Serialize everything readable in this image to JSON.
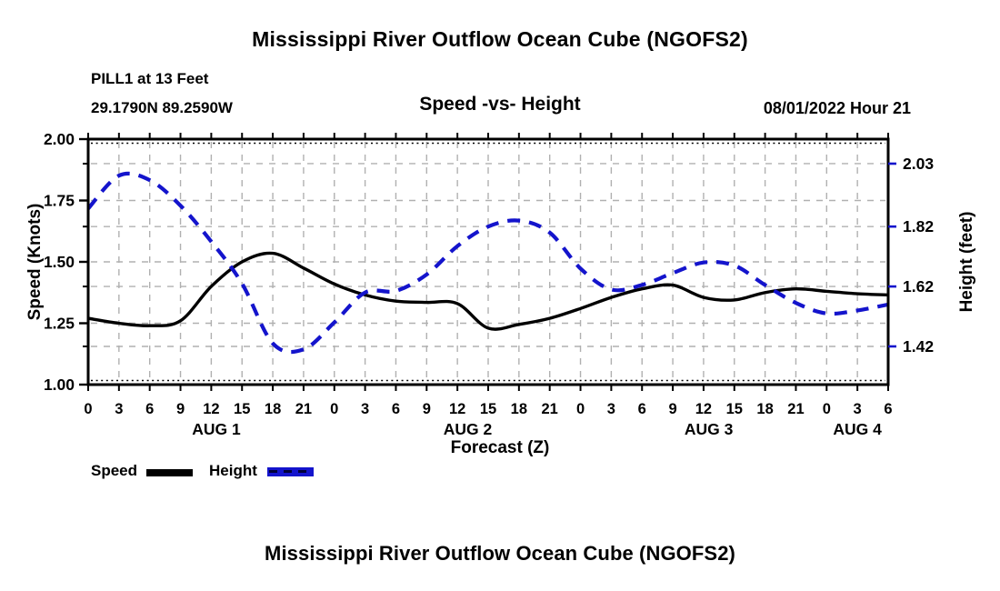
{
  "header": {
    "title": "Mississippi River Outflow Ocean Cube (NGOFS2)",
    "station": "PILL1 at 13 Feet",
    "coords": "29.1790N  89.2590W",
    "subtitle": "Speed -vs- Height",
    "datetime": "08/01/2022 Hour 21"
  },
  "footer": {
    "title": "Mississippi River Outflow Ocean Cube (NGOFS2)"
  },
  "legend": {
    "speed_label": "Speed",
    "height_label": "Height"
  },
  "colors": {
    "speed_line": "#000000",
    "height_line": "#1414cc",
    "grid": "#b0b0b0",
    "axis": "#000000"
  },
  "chart_data": {
    "type": "line",
    "title": "Speed -vs- Height",
    "xlabel": "Forecast (Z)",
    "x_hours": [
      0,
      3,
      6,
      9,
      12,
      15,
      18,
      21,
      24,
      27,
      30,
      33,
      36,
      39,
      42,
      45,
      48,
      51,
      54,
      57,
      60,
      63,
      66,
      69,
      72,
      75,
      78
    ],
    "x_tick_labels": [
      "0",
      "3",
      "6",
      "9",
      "12",
      "15",
      "18",
      "21",
      "0",
      "3",
      "6",
      "9",
      "12",
      "15",
      "18",
      "21",
      "0",
      "3",
      "6",
      "9",
      "12",
      "15",
      "18",
      "21",
      "0",
      "3",
      "6"
    ],
    "day_labels": [
      {
        "label": "AUG 1",
        "hour": 12.5
      },
      {
        "label": "AUG 2",
        "hour": 37
      },
      {
        "label": "AUG 3",
        "hour": 60.5
      },
      {
        "label": "AUG 4",
        "hour": 75
      }
    ],
    "series": [
      {
        "name": "Speed",
        "axis": "left",
        "unit": "Knots",
        "style": "solid",
        "values": [
          1.27,
          1.25,
          1.24,
          1.26,
          1.4,
          1.5,
          1.535,
          1.475,
          1.41,
          1.365,
          1.34,
          1.335,
          1.33,
          1.23,
          1.245,
          1.27,
          1.31,
          1.355,
          1.39,
          1.405,
          1.355,
          1.345,
          1.375,
          1.39,
          1.38,
          1.37,
          1.365
        ]
      },
      {
        "name": "Height",
        "axis": "right",
        "unit": "feet",
        "style": "dashed",
        "values": [
          1.88,
          1.99,
          1.975,
          1.89,
          1.77,
          1.63,
          1.43,
          1.41,
          1.5,
          1.6,
          1.605,
          1.66,
          1.755,
          1.82,
          1.84,
          1.8,
          1.68,
          1.61,
          1.625,
          1.665,
          1.7,
          1.69,
          1.625,
          1.565,
          1.53,
          1.54,
          1.56
        ]
      }
    ],
    "left_axis": {
      "label": "Speed (Knots)",
      "tick_labels": [
        "2.00",
        "1.75",
        "1.50",
        "1.25",
        "1.00"
      ],
      "tick_values": [
        2.0,
        1.75,
        1.5,
        1.25,
        1.0
      ],
      "range": [
        1.0,
        2.0
      ]
    },
    "right_axis": {
      "label": "Height (feet)",
      "tick_labels": [
        "2.03",
        "1.82",
        "1.62",
        "1.42"
      ],
      "tick_values": [
        2.03,
        1.82,
        1.62,
        1.42
      ],
      "range": [
        1.2925,
        2.1119
      ]
    },
    "grid": true,
    "legend_position": "bottom-left"
  }
}
